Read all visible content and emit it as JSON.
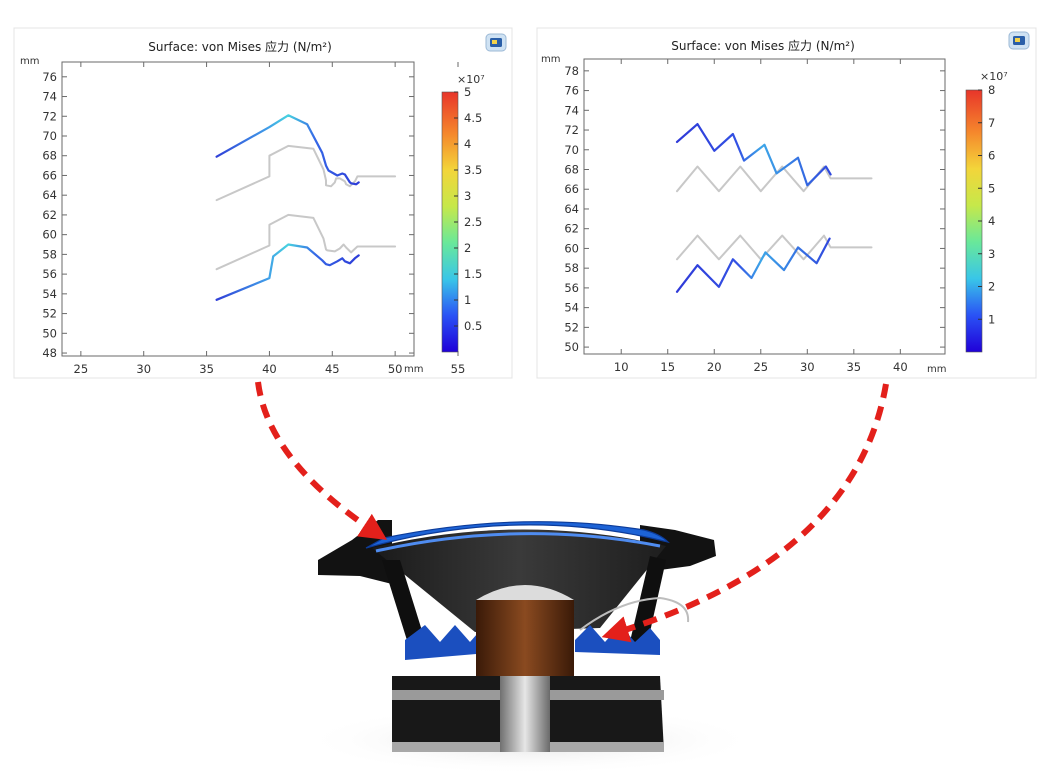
{
  "chart_data": [
    {
      "type": "line",
      "title": "Surface: von Mises 应力 (N/m²)",
      "x_unit": "mm",
      "y_unit": "mm",
      "xlim": [
        23.5,
        51.5
      ],
      "ylim": [
        47.7,
        77.5
      ],
      "x_ticks": [
        25,
        30,
        35,
        40,
        45,
        50,
        55
      ],
      "y_ticks": [
        48,
        50,
        52,
        54,
        56,
        58,
        60,
        62,
        64,
        66,
        68,
        70,
        72,
        74,
        76
      ],
      "colorbar": {
        "range": [
          0,
          5
        ],
        "ticks": [
          "5",
          "4.5",
          "4",
          "3.5",
          "3",
          "2.5",
          "2",
          "1.5",
          "1",
          "0.5"
        ],
        "tick_values": [
          5,
          4.5,
          4,
          3.5,
          3,
          2.5,
          2,
          1.5,
          1,
          0.5
        ],
        "exponent": "×10⁷"
      },
      "series": [
        {
          "color": "#c8c8c8",
          "x": [
            35.8,
            40,
            40,
            41.5,
            43.5,
            44.3,
            44.5,
            44.5,
            44.9,
            45.2,
            45.3,
            45.6,
            46,
            46.1,
            46.4,
            46.8,
            47,
            47,
            50
          ],
          "y": [
            63.5,
            65.9,
            68,
            69,
            68.7,
            66.6,
            65.5,
            65,
            64.9,
            65.3,
            65.7,
            65.7,
            65.4,
            65.1,
            64.9,
            65.4,
            65.9,
            65.9,
            65.9
          ]
        },
        {
          "color": "#3a4de0",
          "stress": true,
          "x": [
            35.8,
            40,
            41.5,
            43,
            44.2,
            44.5,
            44.7,
            45.4,
            45.8,
            46,
            46.4,
            46.5,
            46.9,
            47.1
          ],
          "y": [
            67.9,
            70.9,
            72.1,
            71.2,
            68.3,
            67,
            66.5,
            66,
            66.2,
            66.1,
            65.3,
            65.2,
            65.1,
            65.3
          ]
        },
        {
          "color": "#c8c8c8",
          "x": [
            35.8,
            40,
            40,
            41.5,
            43.5,
            44.3,
            44.5,
            44.6,
            45.2,
            45.6,
            45.9,
            46.1,
            46.5,
            47,
            47,
            50
          ],
          "y": [
            56.5,
            58.9,
            61,
            62,
            61.7,
            59.6,
            58.5,
            58.4,
            58.3,
            58.6,
            59,
            58.7,
            58.2,
            58.8,
            58.8,
            58.8
          ]
        },
        {
          "color": "#3a4de0",
          "stress": true,
          "x": [
            35.8,
            40,
            40.3,
            41.5,
            43,
            44.2,
            44.5,
            44.8,
            45.4,
            45.8,
            46,
            46.4,
            46.8,
            47.1
          ],
          "y": [
            53.4,
            55.6,
            57.8,
            59,
            58.7,
            57.4,
            57,
            56.9,
            57.3,
            57.6,
            57.3,
            57.1,
            57.6,
            57.9
          ]
        }
      ]
    },
    {
      "type": "line",
      "title": "Surface: von Mises 应力 (N/m²)",
      "x_unit": "mm",
      "y_unit": "mm",
      "xlim": [
        6,
        44.8
      ],
      "ylim": [
        49.3,
        79.2
      ],
      "x_ticks": [
        10,
        15,
        20,
        25,
        30,
        35,
        40
      ],
      "y_ticks": [
        50,
        52,
        54,
        56,
        58,
        60,
        62,
        64,
        66,
        68,
        70,
        72,
        74,
        76,
        78
      ],
      "colorbar": {
        "range": [
          0,
          8
        ],
        "ticks": [
          "8",
          "7",
          "6",
          "5",
          "4",
          "3",
          "2",
          "1"
        ],
        "tick_values": [
          8,
          7,
          6,
          5,
          4,
          3,
          2,
          1
        ],
        "exponent": "×10⁷"
      },
      "series": [
        {
          "color": "#c8c8c8",
          "x": [
            16,
            18.2,
            20.5,
            22.8,
            25,
            27.3,
            29.6,
            31.8,
            32.5,
            36.9
          ],
          "y": [
            65.8,
            68.3,
            65.8,
            68.3,
            65.8,
            68.3,
            65.8,
            68.3,
            67.1,
            67.1
          ]
        },
        {
          "color": "#3a4de0",
          "stress": true,
          "x": [
            16,
            18.2,
            20,
            22,
            23.2,
            25.4,
            26.7,
            29,
            30,
            32,
            32.5
          ],
          "y": [
            70.8,
            72.6,
            69.9,
            71.6,
            68.9,
            70.5,
            67.6,
            69.2,
            66.4,
            68.3,
            67.5
          ]
        },
        {
          "color": "#c8c8c8",
          "x": [
            16,
            18.2,
            20.5,
            22.8,
            25,
            27.3,
            29.6,
            31.8,
            32.5,
            36.9
          ],
          "y": [
            58.9,
            61.3,
            58.9,
            61.3,
            58.9,
            61.3,
            58.9,
            61.3,
            60.1,
            60.1
          ]
        },
        {
          "color": "#3a4de0",
          "stress": true,
          "x": [
            16,
            18.2,
            20.5,
            22,
            24,
            25.5,
            27.5,
            29,
            31,
            32.4
          ],
          "y": [
            55.6,
            58.3,
            56.1,
            58.9,
            57,
            59.6,
            57.8,
            60.1,
            58.5,
            61
          ]
        }
      ]
    }
  ]
}
